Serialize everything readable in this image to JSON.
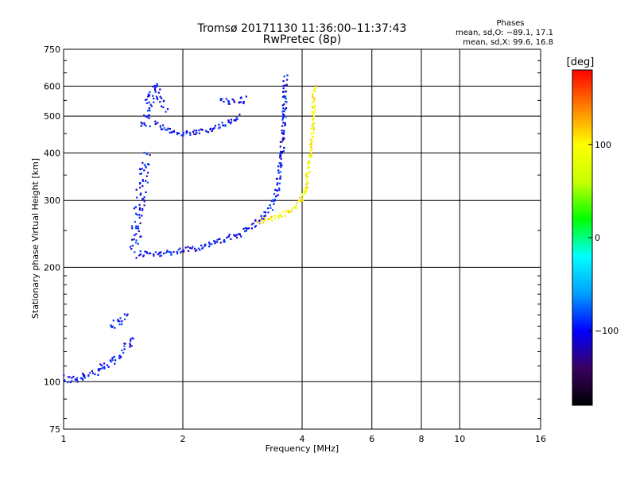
{
  "chart_data": {
    "type": "scatter",
    "title": "Tromsø 20171130 11:36:00–11:37:43",
    "subtitle": "RwPretec (8p)",
    "xlabel": "Frequency [MHz]",
    "ylabel": "Stationary phase Virtual Height [km]",
    "x_scale": "log",
    "y_scale": "log",
    "xlim": [
      1,
      16
    ],
    "ylim": [
      75,
      750
    ],
    "x_ticks": [
      1,
      2,
      4,
      6,
      8,
      10,
      16
    ],
    "x_tick_labels": [
      "1",
      "2",
      "4",
      "6",
      "8",
      "10",
      "16"
    ],
    "y_ticks": [
      75,
      100,
      200,
      300,
      400,
      500,
      600,
      750
    ],
    "y_tick_labels": [
      "75",
      "100",
      "200",
      "300",
      "400",
      "500",
      "600",
      "750"
    ],
    "grid": true,
    "phase_info": {
      "header": "Phases",
      "line_o": "mean, sd,O: −89.1, 17.1",
      "line_x": "mean, sd,X:  99.6, 16.8"
    },
    "colorbar": {
      "label": "[deg]",
      "range": [
        -180,
        180
      ],
      "ticks": [
        100,
        0,
        -100
      ],
      "tick_labels": [
        "100",
        "0",
        "−100"
      ],
      "colors": [
        "#000000",
        "#3a0060",
        "#0000ff",
        "#00a0ff",
        "#00ffff",
        "#00ff00",
        "#c8ff00",
        "#ffff00",
        "#ff8000",
        "#ff0000"
      ]
    },
    "series": [
      {
        "name": "O",
        "phase": -100,
        "traces": [
          {
            "kind": "curve",
            "points": [
              [
                1.0,
                102
              ],
              [
                1.05,
                101
              ],
              [
                1.1,
                103
              ],
              [
                1.15,
                105
              ],
              [
                1.2,
                106
              ],
              [
                1.25,
                108
              ],
              [
                1.3,
                111
              ],
              [
                1.35,
                115
              ],
              [
                1.4,
                119
              ],
              [
                1.45,
                125
              ],
              [
                1.5,
                132
              ]
            ],
            "spread": 0.04
          },
          {
            "kind": "curve",
            "points": [
              [
                1.3,
                140
              ],
              [
                1.4,
                145
              ],
              [
                1.45,
                150
              ]
            ],
            "spread": 0.03
          },
          {
            "kind": "curve",
            "points": [
              [
                1.55,
                218
              ],
              [
                1.6,
                217
              ],
              [
                1.7,
                217
              ],
              [
                1.8,
                218
              ],
              [
                1.9,
                220
              ],
              [
                2.0,
                222
              ],
              [
                2.2,
                226
              ],
              [
                2.4,
                232
              ],
              [
                2.6,
                238
              ],
              [
                2.8,
                246
              ],
              [
                3.0,
                258
              ],
              [
                3.2,
                272
              ],
              [
                3.35,
                290
              ],
              [
                3.45,
                315
              ],
              [
                3.5,
                350
              ],
              [
                3.55,
                400
              ],
              [
                3.6,
                470
              ],
              [
                3.62,
                560
              ],
              [
                3.63,
                640
              ]
            ],
            "spread": 0.025
          },
          {
            "kind": "curve",
            "points": [
              [
                1.5,
                220
              ],
              [
                1.52,
                240
              ],
              [
                1.53,
                260
              ],
              [
                1.55,
                280
              ],
              [
                1.56,
                300
              ],
              [
                1.58,
                330
              ],
              [
                1.6,
                360
              ],
              [
                1.62,
                390
              ]
            ],
            "spread": 0.06
          },
          {
            "kind": "curve",
            "points": [
              [
                1.7,
                480
              ],
              [
                1.8,
                465
              ],
              [
                1.9,
                455
              ],
              [
                2.0,
                450
              ],
              [
                2.2,
                455
              ],
              [
                2.4,
                465
              ],
              [
                2.6,
                480
              ],
              [
                2.8,
                500
              ]
            ],
            "spread": 0.02
          },
          {
            "kind": "curve",
            "points": [
              [
                1.6,
                460
              ],
              [
                1.62,
                500
              ],
              [
                1.65,
                550
              ],
              [
                1.7,
                600
              ],
              [
                1.75,
                560
              ],
              [
                1.8,
                520
              ]
            ],
            "spread": 0.05
          },
          {
            "kind": "curve",
            "points": [
              [
                2.5,
                560
              ],
              [
                2.6,
                550
              ],
              [
                2.7,
                545
              ],
              [
                2.9,
                555
              ]
            ],
            "spread": 0.03
          }
        ]
      },
      {
        "name": "X",
        "phase": 100,
        "traces": [
          {
            "kind": "curve",
            "points": [
              [
                3.1,
                265
              ],
              [
                3.3,
                268
              ],
              [
                3.5,
                272
              ],
              [
                3.7,
                280
              ],
              [
                3.85,
                290
              ],
              [
                4.0,
                305
              ],
              [
                4.1,
                330
              ],
              [
                4.15,
                360
              ],
              [
                4.2,
                400
              ],
              [
                4.25,
                460
              ],
              [
                4.27,
                520
              ],
              [
                4.3,
                600
              ]
            ],
            "spread": 0.02
          }
        ]
      }
    ]
  }
}
